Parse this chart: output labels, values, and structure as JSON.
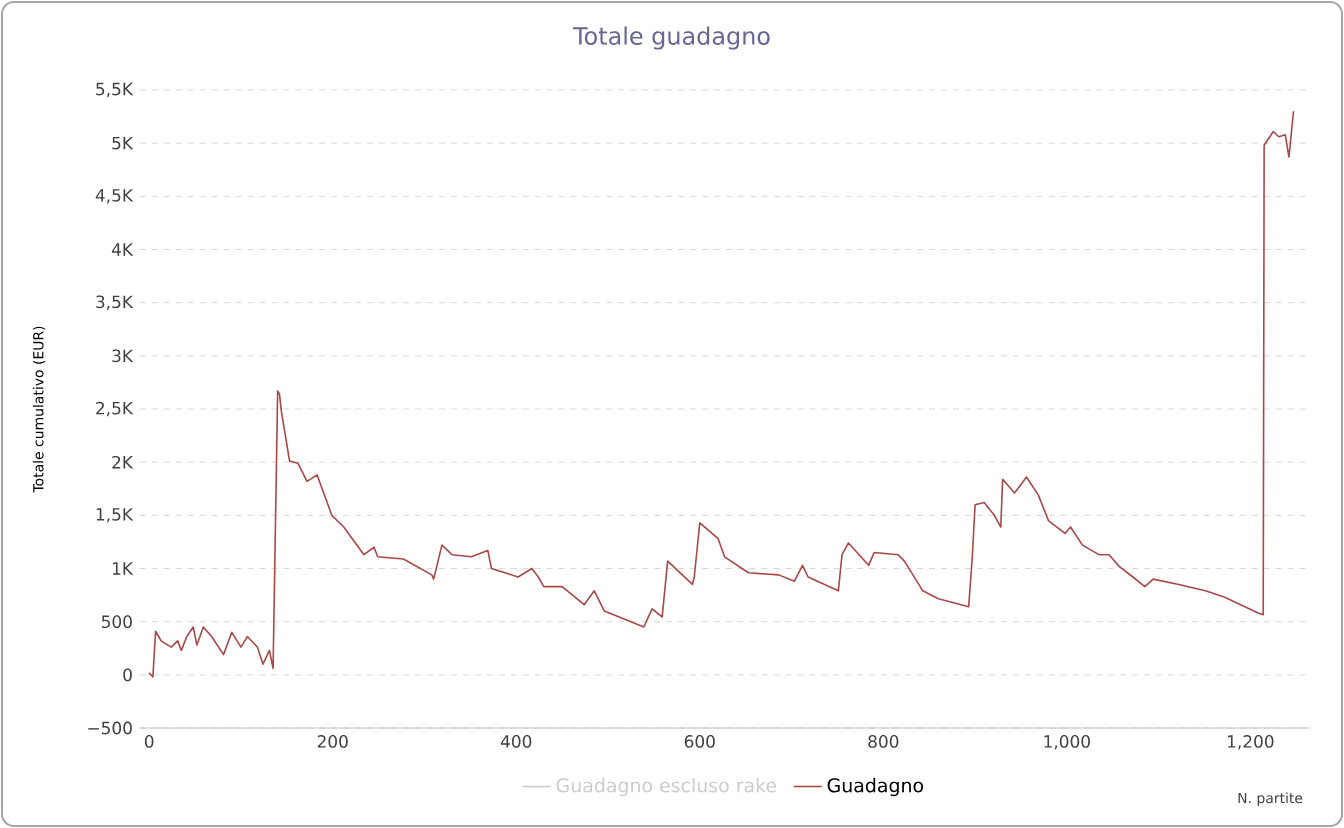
{
  "chart_data": {
    "type": "line",
    "title": "Totale guadagno",
    "xlabel": "N. partite",
    "ylabel": "Totale cumulativo (EUR)",
    "xlim": [
      -10,
      1265
    ],
    "ylim": [
      -500,
      5500
    ],
    "xticks": [
      0,
      200,
      400,
      600,
      800,
      {
        "value": 1000,
        "label": "1,000"
      },
      {
        "value": 1200,
        "label": "1,200"
      }
    ],
    "yticks": [
      {
        "value": -500,
        "label": "−500"
      },
      0,
      500,
      {
        "value": 1000,
        "label": "1K"
      },
      {
        "value": 1500,
        "label": "1,5K"
      },
      {
        "value": 2000,
        "label": "2K"
      },
      {
        "value": 2500,
        "label": "2,5K"
      },
      {
        "value": 3000,
        "label": "3K"
      },
      {
        "value": 3500,
        "label": "3,5K"
      },
      {
        "value": 4000,
        "label": "4K"
      },
      {
        "value": 4500,
        "label": "4,5K"
      },
      {
        "value": 5000,
        "label": "5K"
      },
      {
        "value": 5500,
        "label": "5,5K"
      }
    ],
    "grid": "y",
    "legend": "bottom",
    "line_style": "solid",
    "marker": "none",
    "series": [
      {
        "name": "Guadagno escluso rake",
        "color": "#cccccc"
      },
      {
        "name": "Guadagno",
        "color": "#a94848",
        "x": [
          0,
          4,
          7,
          13,
          24,
          31,
          35,
          41,
          48,
          52,
          59,
          68,
          81,
          90,
          100,
          107,
          118,
          124,
          131,
          135,
          140,
          142,
          144,
          153,
          162,
          172,
          183,
          199,
          212,
          234,
          245,
          249,
          277,
          308,
          310,
          319,
          330,
          351,
          369,
          373,
          402,
          417,
          424,
          430,
          450,
          474,
          485,
          496,
          539,
          548,
          559,
          565,
          592,
          594,
          600,
          620,
          627,
          653,
          686,
          703,
          712,
          718,
          751,
          755,
          762,
          784,
          790,
          816,
          823,
          843,
          860,
          893,
          897,
          900,
          910,
          921,
          928,
          930,
          943,
          956,
          969,
          980,
          998,
          1004,
          1017,
          1035,
          1046,
          1057,
          1072,
          1085,
          1094,
          1122,
          1151,
          1172,
          1209,
          1214,
          1215,
          1225,
          1231,
          1238,
          1242,
          1247
        ],
        "values": [
          20,
          -20,
          410,
          320,
          260,
          320,
          230,
          360,
          450,
          280,
          450,
          360,
          190,
          400,
          260,
          360,
          260,
          100,
          230,
          60,
          2670,
          2640,
          2480,
          2010,
          1990,
          1820,
          1880,
          1500,
          1390,
          1130,
          1200,
          1110,
          1090,
          940,
          900,
          1220,
          1130,
          1110,
          1170,
          1000,
          920,
          1000,
          920,
          830,
          830,
          660,
          790,
          600,
          450,
          620,
          545,
          1070,
          850,
          920,
          1430,
          1280,
          1110,
          960,
          940,
          880,
          1030,
          920,
          790,
          1130,
          1240,
          1030,
          1150,
          1130,
          1070,
          790,
          715,
          640,
          1110,
          1600,
          1620,
          1500,
          1390,
          1840,
          1710,
          1860,
          1690,
          1450,
          1330,
          1390,
          1220,
          1130,
          1130,
          1020,
          920,
          830,
          900,
          850,
          790,
          730,
          580,
          565,
          4980,
          5110,
          5060,
          5080,
          4870,
          5300
        ]
      }
    ]
  }
}
